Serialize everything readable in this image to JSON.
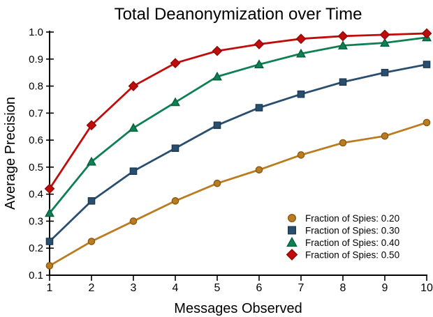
{
  "chart_data": {
    "type": "line",
    "title": "Total Deanonymization over Time",
    "xlabel": "Messages Observed",
    "ylabel": "Average Precision",
    "x": [
      1,
      2,
      3,
      4,
      5,
      6,
      7,
      8,
      9,
      10
    ],
    "xticks": [
      "1",
      "2",
      "3",
      "4",
      "5",
      "6",
      "7",
      "8",
      "9",
      "10"
    ],
    "yticks": [
      "0.1",
      "0.2",
      "0.3",
      "0.4",
      "0.5",
      "0.6",
      "0.7",
      "0.8",
      "0.9",
      "1.0"
    ],
    "xlim": [
      1,
      10
    ],
    "ylim": [
      0.1,
      1.0
    ],
    "grid": false,
    "legend_position": "lower-right-inside",
    "axis_color": "#000000",
    "series": [
      {
        "name": "Fraction of Spies: 0.20",
        "marker": "circle",
        "color": "#BA7C20",
        "edge_color": "#8A5A14",
        "values": [
          0.135,
          0.225,
          0.3,
          0.375,
          0.44,
          0.49,
          0.545,
          0.59,
          0.615,
          0.665
        ]
      },
      {
        "name": "Fraction of Spies: 0.30",
        "marker": "square",
        "color": "#2A4E6D",
        "edge_color": "#1E3A52",
        "values": [
          0.225,
          0.375,
          0.485,
          0.57,
          0.655,
          0.72,
          0.77,
          0.815,
          0.85,
          0.88
        ]
      },
      {
        "name": "Fraction of Spies: 0.40",
        "marker": "triangle",
        "color": "#0E8053",
        "edge_color": "#0A5E3D",
        "values": [
          0.33,
          0.52,
          0.645,
          0.74,
          0.835,
          0.88,
          0.92,
          0.95,
          0.96,
          0.98
        ]
      },
      {
        "name": "Fraction of Spies: 0.50",
        "marker": "diamond",
        "color": "#C00D0B",
        "edge_color": "#8E0A08",
        "values": [
          0.42,
          0.655,
          0.8,
          0.885,
          0.93,
          0.955,
          0.975,
          0.985,
          0.99,
          0.995
        ]
      }
    ]
  }
}
